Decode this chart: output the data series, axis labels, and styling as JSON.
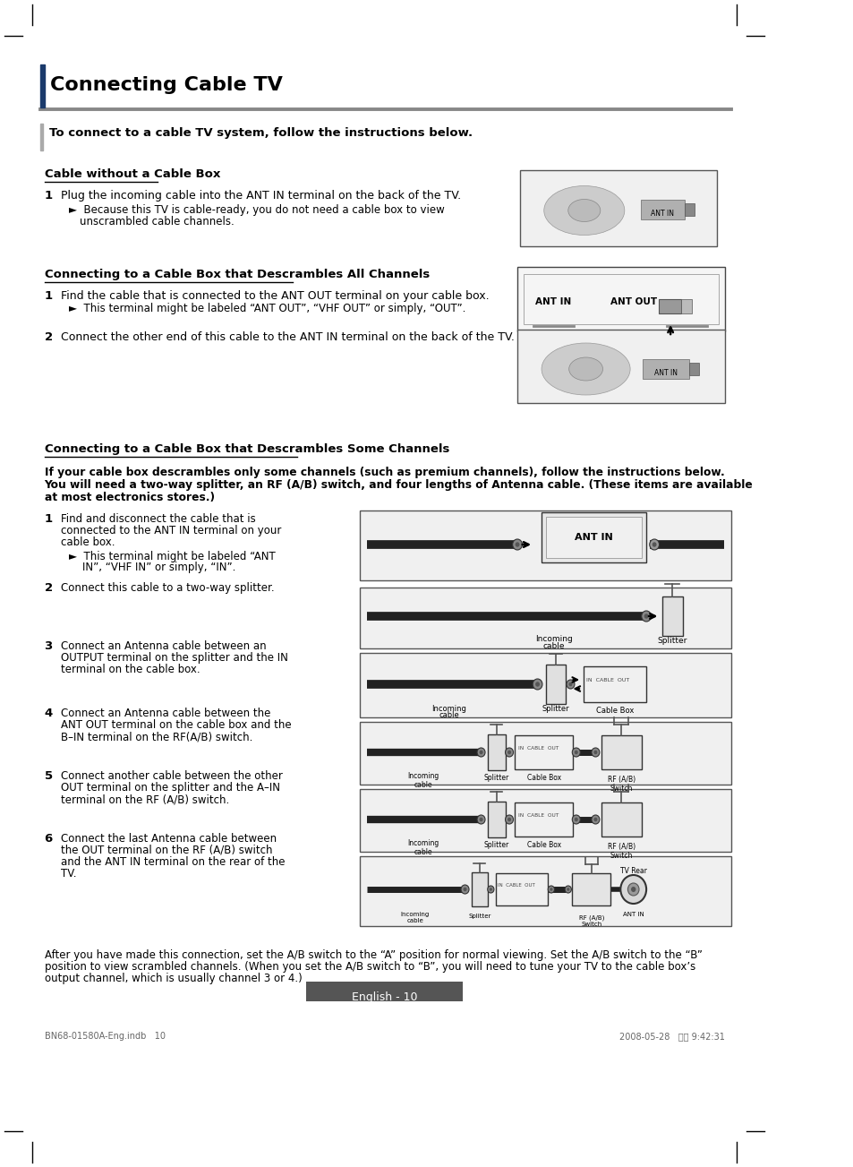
{
  "page_bg": "#ffffff",
  "title": "Connecting Cable TV",
  "subtitle": "To connect to a cable TV system, follow the instructions below.",
  "section1_title": "Cable without a Cable Box",
  "section1_steps": [
    {
      "num": "1",
      "text": "Plug the incoming cable into the ANT IN terminal on the back of the TV.",
      "sub": "Because this TV is cable-ready, you do not need a cable box to view\nunscrambled cable channels."
    }
  ],
  "section2_title": "Connecting to a Cable Box that Descrambles All Channels",
  "section2_steps": [
    {
      "num": "1",
      "text": "Find the cable that is connected to the ANT OUT terminal on your cable box.",
      "sub": "This terminal might be labeled “ANT OUT”, “VHF OUT” or simply, “OUT”."
    },
    {
      "num": "2",
      "text": "Connect the other end of this cable to the ANT IN terminal on the back of the TV.",
      "sub": ""
    }
  ],
  "section3_title": "Connecting to a Cable Box that Descrambles Some Channels",
  "section3_bold": "If your cable box descrambles only some channels (such as premium channels), follow the instructions below.\nYou will need a two-way splitter, an RF (A/B) switch, and four lengths of Antenna cable. (These items are available\nat most electronics stores.)",
  "section3_steps": [
    {
      "num": "1",
      "text": "Find and disconnect the cable that is\nconnected to the ANT IN terminal on your\ncable box.",
      "sub": "This terminal might be labeled “ANT\nIN”, “VHF IN” or simply, “IN”."
    },
    {
      "num": "2",
      "text": "Connect this cable to a two-way splitter.",
      "sub": ""
    },
    {
      "num": "3",
      "text": "Connect an Antenna cable between an\nOUTPUT terminal on the splitter and the IN\nterminal on the cable box.",
      "sub": ""
    },
    {
      "num": "4",
      "text": "Connect an Antenna cable between the\nANT OUT terminal on the cable box and the\nB–IN terminal on the RF(A/B) switch.",
      "sub": ""
    },
    {
      "num": "5",
      "text": "Connect another cable between the other\nOUT terminal on the splitter and the A–IN\nterminal on the RF (A/B) switch.",
      "sub": ""
    },
    {
      "num": "6",
      "text": "Connect the last Antenna cable between\nthe OUT terminal on the RF (A/B) switch\nand the ANT IN terminal on the rear of the\nTV.",
      "sub": ""
    }
  ],
  "footer_text": "After you have made this connection, set the A/B switch to the “A” position for normal viewing. Set the A/B switch to the “B”\nposition to view scrambled channels. (When you set the A/B switch to “B”, you will need to tune your TV to the cable box’s\noutput channel, which is usually channel 3 or 4.)",
  "page_num": "English - 10",
  "footer_doc": "BN68-01580A-Eng.indb   10",
  "footer_date": "2008-05-28   오후 9:42:31",
  "title_bar_color": "#1a3a6b",
  "title_line_color": "#888888",
  "corner_color": "#000000",
  "diagram_border": "#555555",
  "diagram_bg": "#f0f0f0",
  "diagram_bg2": "#e8e8e8",
  "cable_color": "#222222",
  "connector_color": "#777777",
  "box_border": "#333333",
  "box_bg": "#eeeeee",
  "rf_box_bg": "#e4e4e4"
}
